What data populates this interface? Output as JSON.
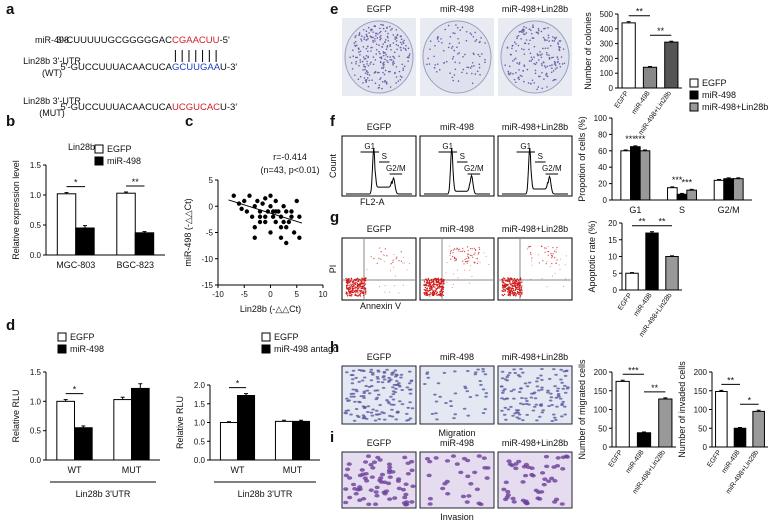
{
  "figure_labels": [
    "a",
    "b",
    "c",
    "d",
    "e",
    "f",
    "g",
    "h",
    "i"
  ],
  "panel_a": {
    "rows": [
      {
        "label": [
          "miR-498"
        ],
        "seq": [
          "3'-CUUUUUGCGGGGGAC",
          "CGAACUU",
          "-5'"
        ]
      },
      {
        "label": [
          "Lin28b 3'-UTR",
          "(WT)"
        ],
        "seq": [
          "5'-GUCCUUUACAACUCA",
          "GCUUGAA",
          "U-3'"
        ]
      },
      {
        "label": [
          "Lin28b 3'-UTR",
          "(MUT)"
        ],
        "seq": [
          "5'-GUCCUUUACAACUCA",
          "UCGUCAC",
          "U-3'"
        ]
      }
    ]
  },
  "panels": {
    "e": {
      "images": [
        "EGFP",
        "miR-498",
        "miR-498+Lin28b"
      ]
    },
    "f": {
      "images": [
        "EGFP",
        "miR-498",
        "miR-498+Lin28b"
      ],
      "gates": [
        [
          "G1",
          "S",
          "G2/M"
        ],
        [
          "G1",
          "S",
          "G2/M"
        ],
        [
          "G1",
          "S",
          "G2/M"
        ]
      ],
      "y_axis": "Count",
      "x_axis": "FL2-A"
    },
    "g": {
      "images": [
        "EGFP",
        "miR-498",
        "miR-498+Lin28b"
      ],
      "y_axis": "PI",
      "x_axis": "Annexin V"
    },
    "h": {
      "images": [
        "EGFP",
        "miR-498",
        "miR-498+Lin28b"
      ],
      "caption": "Migration"
    },
    "i": {
      "images": [
        "EGFP",
        "miR-498",
        "miR-498+Lin28b"
      ],
      "caption": "Invasion"
    }
  },
  "chart_data": [
    {
      "type": "bar",
      "title": "Lin28b",
      "ylabel": "Relative expression level",
      "categories": [
        "MGC-803",
        "BGC-823"
      ],
      "series": [
        {
          "name": "EGFP",
          "color": "#ffffff",
          "values": [
            1.02,
            1.03
          ],
          "errors": [
            0.02,
            0.02
          ]
        },
        {
          "name": "miR-498",
          "color": "#000000",
          "values": [
            0.45,
            0.37
          ],
          "errors": [
            0.04,
            0.02
          ]
        }
      ],
      "ylim": [
        0,
        1.5
      ],
      "yticks": [
        {
          "value": 0,
          "label": "0.0"
        },
        {
          "value": 0.5,
          "label": "0.5"
        },
        {
          "value": 1,
          "label": "1.0"
        },
        {
          "value": 1.5,
          "label": "1.5"
        }
      ],
      "annotations": [
        "*",
        "**"
      ]
    },
    {
      "type": "scatter",
      "xlabel": "Lin28b (-△△Ct)",
      "ylabel": "miR-498 (-△△Ct)",
      "annotations": [
        "r=-0.414",
        "(n=43, p<0.01)"
      ],
      "series": [
        {
          "color": "#000000",
          "x": [
            -6,
            -5,
            -4.5,
            -4,
            -3.5,
            -3,
            -3,
            -2.5,
            -2,
            -2,
            -1.5,
            -1,
            -1,
            -0.5,
            0,
            0,
            0.5,
            1,
            1,
            1.5,
            2,
            2,
            2.5,
            3,
            3,
            3.5,
            4,
            4.5,
            5,
            5.5,
            -7,
            -5.5,
            -3,
            -1,
            0,
            1,
            2,
            3,
            4,
            5.5,
            -2,
            0.5,
            2.5
          ],
          "y": [
            0.5,
            1,
            -1,
            2,
            -2,
            0,
            -4,
            1,
            -1,
            -3,
            0.5,
            -2,
            1.5,
            -1,
            0,
            -5,
            -2,
            1,
            -3,
            -1,
            -2,
            -6,
            0,
            -1,
            -4,
            -3,
            -2,
            -5,
            1,
            -6,
            2,
            -0.5,
            -6,
            -3,
            2,
            -1,
            -4,
            -7,
            -1,
            -2,
            -2,
            -1,
            -3
          ]
        },
        {
          "color": "#000000",
          "line": true,
          "x": [
            -8,
            6
          ],
          "y": [
            1.2,
            -3.2
          ]
        }
      ],
      "xlim": [
        -10,
        10
      ],
      "xticks": [
        -10,
        -5,
        0,
        5,
        10
      ],
      "ylim": [
        -15,
        5
      ],
      "yticks": [
        5,
        0,
        -5,
        -10,
        -15
      ]
    },
    {
      "type": "bar",
      "ylabel": "Relative RLU",
      "xlabel": "Lin28b 3'UTR",
      "categories": [
        "WT",
        "MUT"
      ],
      "series": [
        {
          "name": "EGFP",
          "color": "#ffffff",
          "values": [
            1.0,
            1.03
          ],
          "errors": [
            0.03,
            0.04
          ]
        },
        {
          "name": "miR-498",
          "color": "#000000",
          "values": [
            0.55,
            1.22
          ],
          "errors": [
            0.03,
            0.08
          ]
        }
      ],
      "ylim": [
        0,
        1.5
      ],
      "yticks": [
        {
          "value": 0,
          "label": "0.0"
        },
        {
          "value": 0.5,
          "label": "0.5"
        },
        {
          "value": 1,
          "label": "1.0"
        },
        {
          "value": 1.5,
          "label": "1.5"
        }
      ],
      "annotations": [
        "*"
      ]
    },
    {
      "type": "bar",
      "ylabel": "Relative RLU",
      "xlabel": "Lin28b 3'UTR",
      "categories": [
        "WT",
        "MUT"
      ],
      "series": [
        {
          "name": "EGFP",
          "color": "#ffffff",
          "values": [
            1.0,
            1.03
          ],
          "errors": [
            0.02,
            0.03
          ]
        },
        {
          "name": "miR-498 antago",
          "color": "#000000",
          "values": [
            1.72,
            1.03
          ],
          "errors": [
            0.05,
            0.03
          ]
        }
      ],
      "ylim": [
        0,
        2
      ],
      "yticks": [
        {
          "value": 0,
          "label": "0.0"
        },
        {
          "value": 0.5,
          "label": "0.5"
        },
        {
          "value": 1,
          "label": "1.0"
        },
        {
          "value": 1.5,
          "label": "1.5"
        },
        {
          "value": 2,
          "label": "2.0"
        }
      ],
      "annotations": [
        "*"
      ]
    },
    {
      "type": "bar",
      "ylabel": "Number of colonies",
      "categories": [
        "EGFP",
        "miR-498",
        "miR-498+Lin28b"
      ],
      "values": [
        440,
        140,
        310
      ],
      "errors": [
        8,
        5,
        6
      ],
      "colors": [
        "#ffffff",
        "#888888",
        "#555555"
      ],
      "ylim": [
        0,
        500
      ],
      "yticks": [
        0,
        100,
        200,
        300,
        400,
        500
      ],
      "annotations": [
        "**",
        "**"
      ]
    },
    {
      "type": "bar",
      "ylabel": "Propotion of cells (%)",
      "categories": [
        "G1",
        "S",
        "G2/M"
      ],
      "series": [
        {
          "name": "EGFP",
          "color": "#ffffff",
          "values": [
            60,
            15,
            24
          ],
          "errors": [
            1,
            1,
            1
          ]
        },
        {
          "name": "miR-498",
          "color": "#000000",
          "values": [
            65,
            7,
            26
          ],
          "errors": [
            1,
            1,
            1
          ]
        },
        {
          "name": "miR-498+Lin28b",
          "color": "#999999",
          "values": [
            60,
            12,
            26
          ],
          "errors": [
            1,
            1,
            1
          ]
        }
      ],
      "ylim": [
        0,
        100
      ],
      "yticks": [
        0,
        20,
        40,
        60,
        80,
        100
      ],
      "annotations": [
        "***",
        "***",
        "***",
        "***"
      ]
    },
    {
      "type": "bar",
      "ylabel": "Apoptotic rate (%)",
      "categories": [
        "EGFP",
        "miR-498",
        "miR-498+Lin28b"
      ],
      "values": [
        5,
        17,
        10
      ],
      "errors": [
        0.2,
        0.4,
        0.2
      ],
      "colors": [
        "#ffffff",
        "#000000",
        "#999999"
      ],
      "ylim": [
        0,
        20
      ],
      "yticks": [
        0,
        5,
        10,
        15,
        20
      ],
      "annotations": [
        "**",
        "**"
      ]
    },
    {
      "type": "bar",
      "ylabel": "Number of migrated cells",
      "categories": [
        "EGFP",
        "miR-498",
        "miR-498+Lin28b"
      ],
      "values": [
        175,
        38,
        128
      ],
      "errors": [
        3,
        2,
        3
      ],
      "colors": [
        "#ffffff",
        "#000000",
        "#999999"
      ],
      "ylim": [
        0,
        200
      ],
      "yticks": [
        0,
        50,
        100,
        150,
        200
      ],
      "annotations": [
        "***",
        "**"
      ]
    },
    {
      "type": "bar",
      "ylabel": "Number of invaded cells",
      "categories": [
        "EGFP",
        "miR-498",
        "miR-498+Lin28b"
      ],
      "values": [
        148,
        50,
        95
      ],
      "errors": [
        3,
        2,
        3
      ],
      "colors": [
        "#ffffff",
        "#000000",
        "#999999"
      ],
      "ylim": [
        0,
        200
      ],
      "yticks": [
        0,
        50,
        100,
        150,
        200
      ],
      "annotations": [
        "**",
        "*"
      ]
    }
  ]
}
